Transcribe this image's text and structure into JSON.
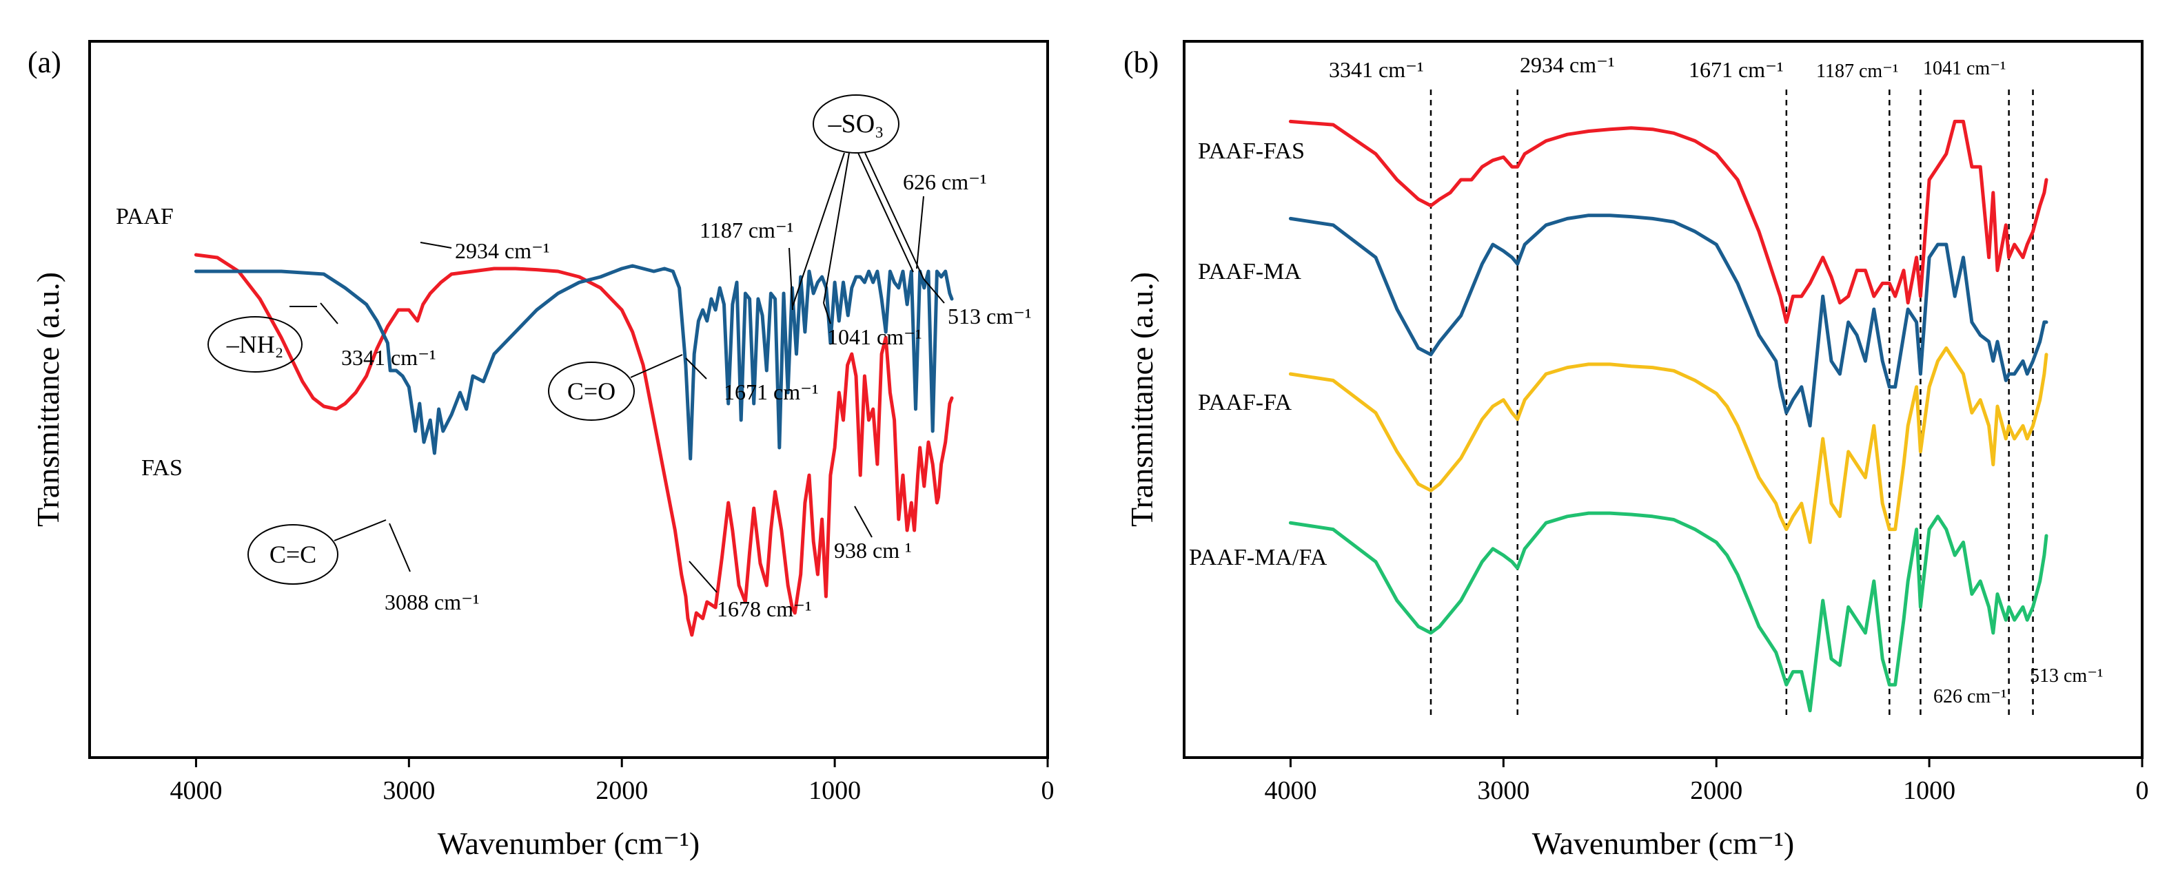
{
  "chart_data": [
    {
      "type": "line",
      "panel_label": "(a)",
      "xlabel": "Wavenumber (cm⁻¹)",
      "ylabel": "Transmittance (a.u.)",
      "xlim": [
        4500,
        0
      ],
      "ylim": [
        0,
        100
      ],
      "x_ticks": [
        "4000",
        "3000",
        "2000",
        "1000",
        "0"
      ],
      "grid": false,
      "series": [
        {
          "name": "PAAF",
          "color": "#ee1c25",
          "x": [
            4000,
            3900,
            3800,
            3700,
            3600,
            3500,
            3450,
            3400,
            3341,
            3300,
            3250,
            3200,
            3150,
            3100,
            3050,
            3000,
            2960,
            2934,
            2900,
            2850,
            2800,
            2700,
            2600,
            2500,
            2400,
            2300,
            2200,
            2100,
            2000,
            1950,
            1900,
            1850,
            1800,
            1750,
            1720,
            1700,
            1690,
            1671,
            1650,
            1620,
            1600,
            1560,
            1530,
            1500,
            1480,
            1450,
            1420,
            1400,
            1380,
            1350,
            1320,
            1300,
            1280,
            1250,
            1220,
            1200,
            1187,
            1160,
            1140,
            1120,
            1100,
            1080,
            1060,
            1041,
            1020,
            1000,
            980,
            960,
            940,
            920,
            900,
            880,
            860,
            840,
            820,
            800,
            780,
            760,
            740,
            720,
            700,
            680,
            660,
            640,
            626,
            610,
            600,
            580,
            560,
            540,
            520,
            513,
            500,
            480,
            460,
            450
          ],
          "y": [
            80,
            79.5,
            77,
            72,
            65,
            57,
            54,
            52.5,
            52,
            53,
            55,
            58,
            63,
            67,
            70,
            70,
            68,
            71,
            73,
            75,
            76.5,
            77,
            77.5,
            77.5,
            77.3,
            77,
            76,
            74,
            70,
            66,
            60,
            50,
            40,
            30,
            22,
            18,
            14,
            11,
            15,
            14,
            17,
            16,
            25,
            35,
            30,
            20,
            17,
            26,
            34,
            24,
            20,
            30,
            37,
            30,
            20,
            16,
            15,
            22,
            35,
            40,
            28,
            22,
            32,
            18,
            40,
            45,
            55,
            50,
            60,
            62,
            58,
            40,
            58,
            50,
            52,
            42,
            62,
            65,
            55,
            50,
            32,
            40,
            30,
            35,
            30,
            40,
            45,
            38,
            46,
            42,
            35,
            36,
            42,
            46,
            53,
            54
          ]
        },
        {
          "name": "FAS",
          "color": "#1a5d8f",
          "x": [
            4000,
            3800,
            3600,
            3400,
            3300,
            3200,
            3150,
            3100,
            3088,
            3060,
            3030,
            3000,
            2970,
            2950,
            2930,
            2900,
            2880,
            2860,
            2840,
            2800,
            2760,
            2730,
            2700,
            2650,
            2600,
            2500,
            2400,
            2300,
            2200,
            2100,
            2000,
            1950,
            1900,
            1850,
            1800,
            1760,
            1730,
            1700,
            1678,
            1660,
            1640,
            1620,
            1600,
            1580,
            1560,
            1540,
            1520,
            1500,
            1480,
            1460,
            1440,
            1420,
            1400,
            1380,
            1360,
            1340,
            1320,
            1300,
            1280,
            1260,
            1240,
            1220,
            1200,
            1180,
            1160,
            1140,
            1120,
            1100,
            1080,
            1060,
            1040,
            1020,
            1000,
            980,
            960,
            938,
            920,
            900,
            880,
            860,
            840,
            820,
            800,
            780,
            760,
            740,
            720,
            700,
            680,
            660,
            640,
            620,
            600,
            580,
            560,
            540,
            520,
            500,
            480,
            460,
            450
          ],
          "y": [
            77,
            77,
            77,
            76.5,
            74,
            71,
            68,
            64,
            59,
            59,
            58,
            56,
            48,
            53,
            46,
            50,
            44,
            52,
            48,
            51,
            55,
            52,
            58,
            57,
            62,
            66,
            70,
            73,
            75,
            76,
            77.5,
            78,
            77.5,
            77,
            77.5,
            77,
            74,
            60,
            43,
            62,
            68,
            70,
            68,
            72,
            70,
            74,
            71,
            53,
            71,
            75,
            50,
            73,
            72,
            53,
            72,
            69,
            59,
            73,
            72,
            45,
            73,
            55,
            74,
            62,
            76,
            66,
            77,
            73,
            75,
            76,
            74,
            64,
            75,
            68,
            75,
            69,
            74,
            76,
            76,
            75,
            77,
            75,
            77,
            72,
            66,
            77,
            75,
            74,
            77,
            71,
            77,
            52,
            77,
            74,
            77,
            48,
            77,
            76,
            77,
            73,
            72
          ]
        }
      ],
      "series_labels": [
        "PAAF",
        "FAS"
      ],
      "annotations": [
        "2934 cm⁻¹",
        "3341 cm⁻¹",
        "–NH₂",
        "1187 cm⁻¹",
        "1041 cm⁻¹",
        "626 cm⁻¹",
        "513 cm⁻¹",
        "–SO₃",
        "C=O",
        "1671 cm⁻¹",
        "C=C",
        "3088 cm⁻¹",
        "1678 cm⁻¹",
        "938 cm ¹"
      ]
    },
    {
      "type": "line",
      "panel_label": "(b)",
      "xlabel": "Wavenumber (cm⁻¹)",
      "ylabel": "Transmittance (a.u.)",
      "xlim": [
        4500,
        0
      ],
      "ylim": [
        0,
        100
      ],
      "x_ticks": [
        "4000",
        "3000",
        "2000",
        "1000",
        "0"
      ],
      "grid": false,
      "vertical_reference_lines": [
        3341,
        2934,
        1671,
        1187,
        1041,
        626,
        513
      ],
      "vertical_line_labels": [
        "3341 cm⁻¹",
        "2934 cm⁻¹",
        "1671 cm⁻¹",
        "1187 cm⁻¹",
        "1041 cm⁻¹",
        "626 cm⁻¹",
        "513 cm⁻¹"
      ],
      "series": [
        {
          "name": "PAAF-FAS",
          "color": "#ee1c25",
          "x": [
            4000,
            3800,
            3600,
            3500,
            3400,
            3341,
            3300,
            3250,
            3200,
            3150,
            3100,
            3050,
            3000,
            2960,
            2934,
            2900,
            2800,
            2700,
            2600,
            2500,
            2400,
            2300,
            2200,
            2100,
            2000,
            1950,
            1900,
            1850,
            1800,
            1760,
            1720,
            1700,
            1671,
            1640,
            1600,
            1560,
            1500,
            1460,
            1420,
            1380,
            1340,
            1300,
            1260,
            1220,
            1187,
            1160,
            1120,
            1100,
            1060,
            1041,
            1000,
            960,
            920,
            880,
            840,
            800,
            760,
            720,
            700,
            680,
            640,
            626,
            600,
            560,
            540,
            513,
            480,
            460,
            450
          ],
          "y": [
            89,
            88.5,
            84,
            80,
            77,
            76,
            77,
            78,
            80,
            80,
            82,
            83,
            83.5,
            82,
            82,
            84,
            86,
            87,
            87.5,
            87.8,
            88,
            87.8,
            87.2,
            86,
            84,
            82,
            80,
            76,
            72,
            68,
            64,
            62,
            58,
            62,
            62,
            64,
            68,
            65,
            61,
            62,
            66,
            66,
            62,
            64,
            64,
            62,
            66,
            61,
            68,
            62,
            80,
            82,
            84,
            89,
            89,
            82,
            82,
            68,
            78,
            66,
            73,
            68,
            70,
            68,
            70,
            72,
            76,
            78,
            80
          ]
        },
        {
          "name": "PAAF-MA",
          "color": "#1a5d8f",
          "x": [
            4000,
            3800,
            3600,
            3500,
            3400,
            3341,
            3300,
            3250,
            3200,
            3150,
            3100,
            3050,
            3000,
            2960,
            2934,
            2900,
            2800,
            2700,
            2600,
            2500,
            2400,
            2300,
            2200,
            2100,
            2000,
            1950,
            1900,
            1850,
            1800,
            1760,
            1720,
            1700,
            1671,
            1640,
            1600,
            1560,
            1500,
            1460,
            1420,
            1380,
            1340,
            1300,
            1260,
            1220,
            1187,
            1160,
            1120,
            1100,
            1060,
            1041,
            1000,
            960,
            920,
            880,
            840,
            800,
            760,
            720,
            700,
            680,
            640,
            626,
            600,
            560,
            540,
            513,
            480,
            460,
            450
          ],
          "y": [
            74,
            73,
            68,
            60,
            54,
            53,
            55,
            57,
            59,
            63,
            67,
            70,
            69,
            68,
            67,
            70,
            73,
            74,
            74.5,
            74.5,
            74.3,
            74,
            73.5,
            72,
            70,
            67,
            64,
            60,
            56,
            54,
            52,
            48,
            44,
            46,
            48,
            42,
            62,
            52,
            50,
            58,
            56,
            52,
            60,
            52,
            48,
            48,
            56,
            60,
            58,
            50,
            68,
            70,
            70,
            62,
            68,
            58,
            56,
            55,
            52,
            55,
            49,
            50,
            50,
            52,
            50,
            52,
            55,
            58,
            58
          ]
        },
        {
          "name": "PAAF-FA",
          "color": "#f5bf1a",
          "x": [
            4000,
            3800,
            3600,
            3500,
            3400,
            3341,
            3300,
            3250,
            3200,
            3150,
            3100,
            3050,
            3000,
            2960,
            2934,
            2900,
            2800,
            2700,
            2600,
            2500,
            2400,
            2300,
            2200,
            2100,
            2000,
            1950,
            1900,
            1850,
            1800,
            1760,
            1720,
            1700,
            1671,
            1640,
            1600,
            1560,
            1500,
            1460,
            1420,
            1380,
            1340,
            1300,
            1260,
            1220,
            1187,
            1160,
            1120,
            1100,
            1060,
            1041,
            1000,
            960,
            920,
            880,
            840,
            800,
            760,
            720,
            700,
            680,
            640,
            626,
            600,
            560,
            540,
            513,
            480,
            460,
            450
          ],
          "y": [
            50,
            49,
            44,
            38,
            33,
            32,
            33,
            35,
            37,
            40,
            43,
            45,
            46,
            44,
            43,
            46,
            50,
            51,
            51.5,
            51.5,
            51.2,
            51,
            50.5,
            49,
            47,
            45,
            42,
            38,
            34,
            32,
            30,
            28,
            26,
            28,
            30,
            24,
            40,
            30,
            28,
            38,
            36,
            34,
            42,
            30,
            26,
            26,
            36,
            42,
            48,
            38,
            48,
            52,
            54,
            52,
            50,
            44,
            46,
            42,
            36,
            45,
            40,
            42,
            40,
            42,
            40,
            42,
            46,
            50,
            53
          ]
        },
        {
          "name": "PAAF-MA/FA",
          "color": "#20c070",
          "x": [
            4000,
            3800,
            3600,
            3500,
            3400,
            3341,
            3300,
            3250,
            3200,
            3150,
            3100,
            3050,
            3000,
            2960,
            2934,
            2900,
            2800,
            2700,
            2600,
            2500,
            2400,
            2300,
            2200,
            2100,
            2000,
            1950,
            1900,
            1850,
            1800,
            1760,
            1720,
            1700,
            1671,
            1640,
            1600,
            1560,
            1500,
            1460,
            1420,
            1380,
            1340,
            1300,
            1260,
            1220,
            1187,
            1160,
            1120,
            1100,
            1060,
            1041,
            1000,
            960,
            920,
            880,
            840,
            800,
            760,
            720,
            700,
            680,
            640,
            626,
            600,
            560,
            540,
            513,
            480,
            460,
            450
          ],
          "y": [
            27,
            26,
            21,
            15,
            11,
            10,
            11,
            13,
            15,
            18,
            21,
            23,
            22,
            21,
            20,
            23,
            27,
            28,
            28.5,
            28.5,
            28.3,
            28,
            27.5,
            26,
            24,
            22,
            19,
            15,
            11,
            9,
            7,
            5,
            2,
            4,
            4,
            -2,
            15,
            6,
            5,
            14,
            12,
            10,
            18,
            6,
            2,
            2,
            12,
            18,
            26,
            14,
            26,
            28,
            26,
            22,
            24,
            16,
            18,
            14,
            10,
            16,
            12,
            14,
            12,
            14,
            12,
            14,
            18,
            22,
            25
          ]
        }
      ],
      "series_labels": [
        "PAAF-FAS",
        "PAAF-MA",
        "PAAF-FA",
        "PAAF-MA/FA"
      ]
    }
  ]
}
